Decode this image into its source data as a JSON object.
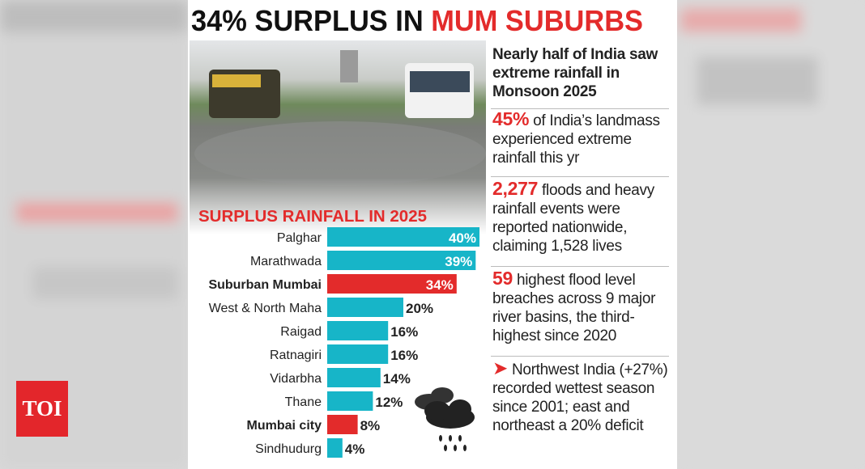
{
  "header": {
    "title_black": "34% SURPLUS IN",
    "title_red": "MUM SUBURBS"
  },
  "logo": "TOI",
  "headline": "Nearly half of India saw extreme rainfall in Monsoon 2025",
  "facts": [
    {
      "highlight": "45%",
      "text": "of India’s landmass experienced extreme rainfall this yr"
    },
    {
      "highlight": "2,277",
      "text": "floods and heavy rainfall events were reported nationwide, claiming 1,528 lives"
    },
    {
      "highlight": "59",
      "text": "highest flood level breaches across 9 major river basins, the third-highest since 2020"
    },
    {
      "highlight": "➤",
      "text": "Northwest India (+27%) recorded wettest season since 2001; east and northeast a 20% deficit"
    }
  ],
  "chart_data": {
    "type": "bar",
    "orientation": "horizontal",
    "title": "SURPLUS RAINFALL IN 2025",
    "categories": [
      "Palghar",
      "Marathwada",
      "Suburban Mumbai",
      "West & North Maha",
      "Raigad",
      "Ratnagiri",
      "Vidarbha",
      "Thane",
      "Mumbai city",
      "Sindhudurg"
    ],
    "values": [
      40,
      39,
      34,
      20,
      16,
      16,
      14,
      12,
      8,
      4
    ],
    "value_labels": [
      "40%",
      "39%",
      "34%",
      "20%",
      "16%",
      "16%",
      "14%",
      "12%",
      "8%",
      "4%"
    ],
    "colors": [
      "#17b5c8",
      "#17b5c8",
      "#e32b2b",
      "#17b5c8",
      "#17b5c8",
      "#17b5c8",
      "#17b5c8",
      "#17b5c8",
      "#e32b2b",
      "#17b5c8"
    ],
    "xlim": [
      0,
      40
    ]
  }
}
